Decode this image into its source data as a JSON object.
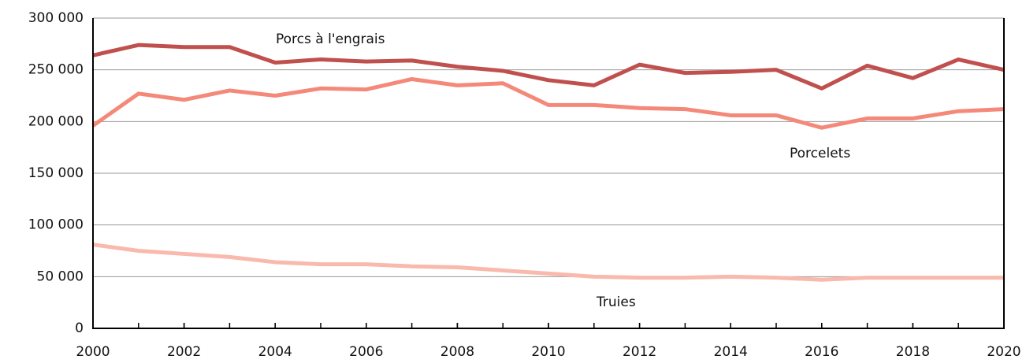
{
  "chart_data": {
    "type": "line",
    "x": [
      2000,
      2001,
      2002,
      2003,
      2004,
      2005,
      2006,
      2007,
      2008,
      2009,
      2010,
      2011,
      2012,
      2013,
      2014,
      2015,
      2016,
      2017,
      2018,
      2019,
      2020
    ],
    "series": [
      {
        "name": "Porcs à l'engrais",
        "color": "#c0504d",
        "values": [
          264000,
          274000,
          272000,
          272000,
          257000,
          260000,
          258000,
          259000,
          253000,
          249000,
          240000,
          235000,
          255000,
          247000,
          248000,
          250000,
          232000,
          254000,
          242000,
          260000,
          250000
        ]
      },
      {
        "name": "Porcelets",
        "color": "#f4897a",
        "values": [
          196000,
          227000,
          221000,
          230000,
          225000,
          232000,
          231000,
          241000,
          235000,
          237000,
          216000,
          216000,
          213000,
          212000,
          206000,
          206000,
          194000,
          203000,
          203000,
          210000,
          212000
        ]
      },
      {
        "name": "Truies",
        "color": "#f9b9ad",
        "values": [
          81000,
          75000,
          72000,
          69000,
          64000,
          62000,
          62000,
          60000,
          59000,
          56000,
          53000,
          50000,
          49000,
          49000,
          50000,
          49000,
          47000,
          49000,
          49000,
          49000,
          49000
        ]
      }
    ],
    "xlim": [
      2000,
      2020
    ],
    "xticks": [
      2000,
      2002,
      2004,
      2006,
      2008,
      2010,
      2012,
      2014,
      2016,
      2018,
      2020
    ],
    "ylim": [
      0,
      300000
    ],
    "yticks": [
      0,
      {
        "value": 50000,
        "label": "50 000"
      },
      {
        "value": 100000,
        "label": "100 000"
      },
      {
        "value": 150000,
        "label": "150 000"
      },
      {
        "value": 200000,
        "label": "200 000"
      },
      {
        "value": 250000,
        "label": "250 000"
      },
      {
        "value": 300000,
        "label": "300 000"
      }
    ],
    "grid": true
  }
}
